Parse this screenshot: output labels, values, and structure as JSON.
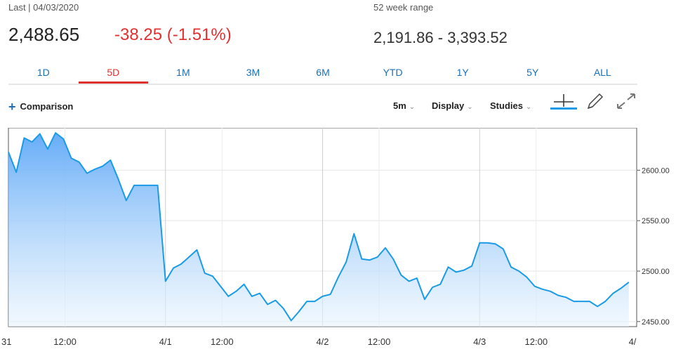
{
  "quote": {
    "last_label": "Last | 04/03/2020",
    "last_price": "2,488.65",
    "change": "-38.25 (-1.51%)",
    "range_label": "52 week range",
    "range_value": "2,191.86 - 3,393.52",
    "change_color": "#e03131"
  },
  "periods": [
    "1D",
    "5D",
    "1M",
    "3M",
    "6M",
    "YTD",
    "1Y",
    "5Y",
    "ALL"
  ],
  "active_period": "5D",
  "toolbar": {
    "comparison_label": "Comparison",
    "interval_label": "5m",
    "display_label": "Display",
    "studies_label": "Studies",
    "icons": [
      "crosshair-icon",
      "pencil-icon",
      "expand-icon"
    ]
  },
  "colors": {
    "line": "#1a9be6",
    "accent": "#1a6fb8",
    "negative": "#e03131"
  },
  "chart_data": {
    "type": "area",
    "y_ticks": [
      2450,
      2500,
      2550,
      2600
    ],
    "y_tick_labels": [
      "2450.00",
      "2500.00",
      "2550.00",
      "2600.00"
    ],
    "ylim": [
      2445,
      2642
    ],
    "x_tick_labels": [
      "31",
      "12:00",
      "4/1",
      "12:00",
      "4/2",
      "12:00",
      "4/3",
      "12:00",
      "4/"
    ],
    "grid": true,
    "x": [
      "3/31 09:30",
      "3/31 09:50",
      "3/31 10:10",
      "3/31 10:30",
      "3/31 10:50",
      "3/31 11:10",
      "3/31 11:30",
      "3/31 11:50",
      "3/31 12:10",
      "3/31 12:30",
      "3/31 12:50",
      "3/31 13:10",
      "3/31 13:30",
      "3/31 13:50",
      "3/31 14:10",
      "3/31 14:30",
      "3/31 14:50",
      "3/31 15:10",
      "3/31 15:30",
      "3/31 15:50",
      "4/1 09:30",
      "4/1 09:50",
      "4/1 10:10",
      "4/1 10:30",
      "4/1 10:50",
      "4/1 11:10",
      "4/1 11:30",
      "4/1 11:50",
      "4/1 12:10",
      "4/1 12:30",
      "4/1 12:50",
      "4/1 13:10",
      "4/1 13:30",
      "4/1 13:50",
      "4/1 14:10",
      "4/1 14:30",
      "4/1 14:50",
      "4/1 15:10",
      "4/1 15:30",
      "4/1 15:50",
      "4/2 09:30",
      "4/2 09:50",
      "4/2 10:10",
      "4/2 10:30",
      "4/2 10:50",
      "4/2 11:10",
      "4/2 11:30",
      "4/2 11:50",
      "4/2 12:10",
      "4/2 12:30",
      "4/2 12:50",
      "4/2 13:10",
      "4/2 13:30",
      "4/2 13:50",
      "4/2 14:10",
      "4/2 14:30",
      "4/2 14:50",
      "4/2 15:10",
      "4/2 15:30",
      "4/2 15:50",
      "4/3 09:30",
      "4/3 09:50",
      "4/3 10:10",
      "4/3 10:30",
      "4/3 10:50",
      "4/3 11:10",
      "4/3 11:30",
      "4/3 11:50",
      "4/3 12:10",
      "4/3 12:30",
      "4/3 12:50",
      "4/3 13:10",
      "4/3 13:30",
      "4/3 13:50",
      "4/3 14:10",
      "4/3 14:30",
      "4/3 14:50",
      "4/3 15:10",
      "4/3 15:30",
      "4/3 15:50"
    ],
    "series": [
      {
        "values": [
          2618,
          2598,
          2632,
          2628,
          2636,
          2621,
          2637,
          2631,
          2612,
          2608,
          2597,
          2601,
          2604,
          2610,
          2591,
          2570,
          2585,
          2585,
          2585,
          2585,
          2490,
          2503,
          2507,
          2514,
          2521,
          2498,
          2495,
          2485,
          2475,
          2480,
          2487,
          2475,
          2478,
          2467,
          2471,
          2463,
          2451,
          2460,
          2470,
          2470,
          2475,
          2477,
          2494,
          2509,
          2537,
          2512,
          2511,
          2514,
          2523,
          2512,
          2496,
          2490,
          2493,
          2472,
          2484,
          2487,
          2504,
          2499,
          2501,
          2505,
          2528,
          2528,
          2527,
          2522,
          2504,
          2500,
          2494,
          2485,
          2482,
          2480,
          2476,
          2474,
          2470,
          2470,
          2470,
          2465,
          2470,
          2478,
          2483,
          2489
        ]
      }
    ]
  }
}
